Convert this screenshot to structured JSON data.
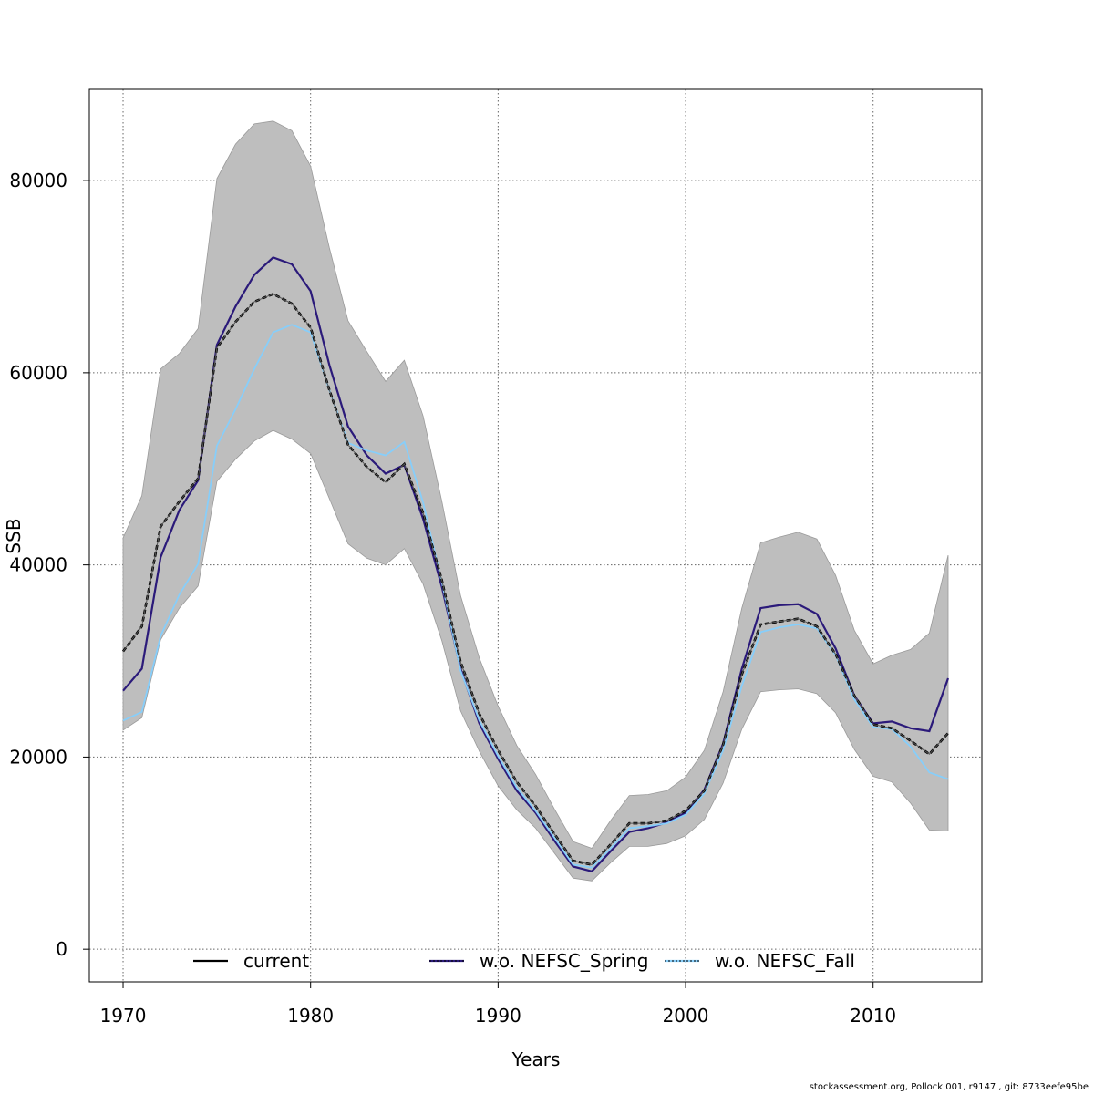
{
  "chart_data": {
    "type": "line",
    "xlabel": "Years",
    "ylabel": "SSB",
    "xlim": [
      1968.2,
      2015.8
    ],
    "ylim": [
      -3400,
      89500
    ],
    "x_ticks": [
      1970,
      1980,
      1990,
      2000,
      2010
    ],
    "y_ticks": [
      0,
      20000,
      40000,
      60000,
      80000
    ],
    "grid": true,
    "legend_position": "bottom",
    "x": [
      1970,
      1971,
      1972,
      1973,
      1974,
      1975,
      1976,
      1977,
      1978,
      1979,
      1980,
      1981,
      1982,
      1983,
      1984,
      1985,
      1986,
      1987,
      1988,
      1989,
      1990,
      1991,
      1992,
      1993,
      1994,
      1995,
      1996,
      1997,
      1998,
      1999,
      2000,
      2001,
      2002,
      2003,
      2004,
      2005,
      2006,
      2007,
      2008,
      2009,
      2010,
      2011,
      2012,
      2013,
      2014
    ],
    "confidence_band": {
      "color": "#bebebe",
      "upper": [
        42800,
        47200,
        60400,
        62000,
        64600,
        80200,
        83800,
        85900,
        86200,
        85200,
        81500,
        73000,
        65400,
        62200,
        59100,
        61300,
        55500,
        46600,
        36800,
        30300,
        25300,
        21200,
        18200,
        14600,
        11200,
        10500,
        13400,
        16000,
        16100,
        16500,
        17900,
        20700,
        26800,
        35500,
        42300,
        42900,
        43400,
        42700,
        38900,
        33200,
        29700,
        30600,
        31200,
        32900,
        41000
      ],
      "lower": [
        22800,
        24100,
        32200,
        35500,
        37800,
        48700,
        51000,
        52900,
        54000,
        53100,
        51600,
        46900,
        42200,
        40700,
        40000,
        41700,
        38000,
        32100,
        24800,
        20600,
        17000,
        14500,
        12600,
        10000,
        7400,
        7100,
        9000,
        10700,
        10700,
        11000,
        11800,
        13500,
        17300,
        22900,
        26800,
        27000,
        27100,
        26600,
        24600,
        20800,
        18000,
        17400,
        15200,
        12400,
        12300
      ]
    },
    "series": [
      {
        "name": "current",
        "color": "#000000",
        "values": [
          31000,
          33600,
          44000,
          46600,
          49000,
          62600,
          65300,
          67400,
          68200,
          67200,
          64700,
          58200,
          52500,
          50200,
          48600,
          50500,
          45400,
          38400,
          29900,
          24500,
          20700,
          17400,
          14900,
          12000,
          9200,
          8800,
          10900,
          13100,
          13100,
          13400,
          14400,
          16500,
          21300,
          28600,
          33800,
          34100,
          34400,
          33600,
          30700,
          26400,
          23400,
          23000,
          21700,
          20300,
          22500
        ]
      },
      {
        "name": "w.o. NEFSC_Spring",
        "color": "#2b1a7a",
        "values": [
          26900,
          29200,
          40800,
          45700,
          48800,
          62900,
          66900,
          70200,
          72000,
          71300,
          68500,
          60800,
          54400,
          51400,
          49500,
          50400,
          44800,
          37700,
          29200,
          23500,
          19800,
          16500,
          14200,
          11300,
          8600,
          8100,
          10200,
          12200,
          12600,
          13200,
          14200,
          16600,
          21400,
          29200,
          35500,
          35800,
          35900,
          34900,
          31300,
          26400,
          23500,
          23700,
          23000,
          22700,
          28200
        ]
      },
      {
        "name": "w.o. NEFSC_Fall",
        "color": "#87cefa",
        "values": [
          23800,
          24700,
          32600,
          36900,
          40100,
          52400,
          56200,
          60400,
          64200,
          65000,
          64200,
          58200,
          52700,
          51900,
          51400,
          52800,
          46500,
          38200,
          29000,
          23800,
          20100,
          16800,
          14400,
          11600,
          8800,
          8500,
          10500,
          12600,
          12800,
          13100,
          14000,
          16200,
          20700,
          27400,
          33000,
          33500,
          33800,
          33400,
          30600,
          26000,
          23100,
          22900,
          21100,
          18400,
          17700
        ]
      }
    ]
  },
  "legend": {
    "items": [
      {
        "label": "current",
        "color": "#000000"
      },
      {
        "label": "w.o. NEFSC_Spring",
        "color": "#2b1a7a"
      },
      {
        "label": "w.o. NEFSC_Fall",
        "color": "#87cefa"
      }
    ]
  },
  "footer": {
    "text": "stockassessment.org, Pollock  001, r9147 , git: 8733eefe95be"
  }
}
